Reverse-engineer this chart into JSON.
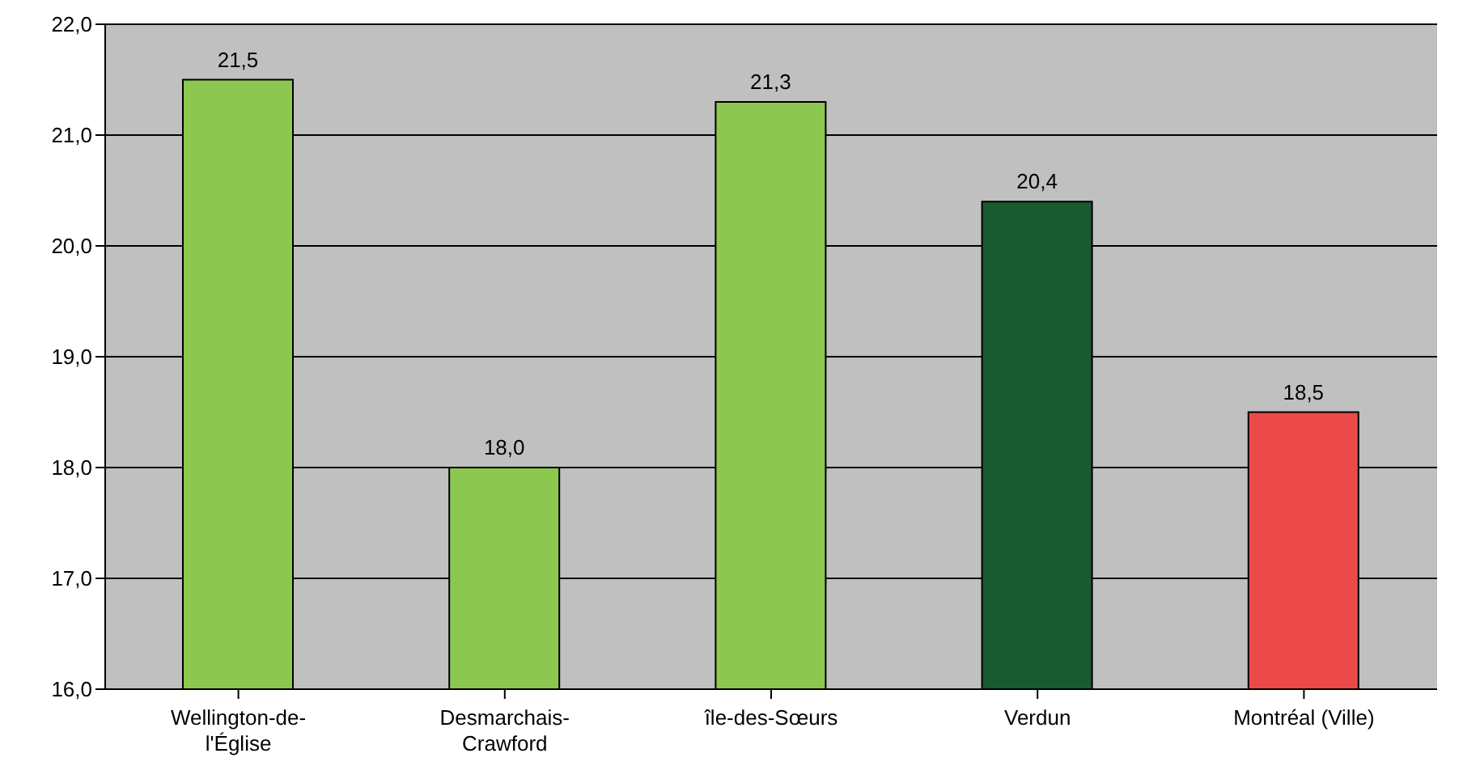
{
  "chart_data": {
    "type": "bar",
    "categories": [
      "Wellington-de-l'Église",
      "Desmarchais-Crawford",
      "île-des-Sœurs",
      "Verdun",
      "Montréal (Ville)"
    ],
    "values": [
      21.5,
      18.0,
      21.3,
      20.4,
      18.5
    ],
    "colors": [
      "#8cc850",
      "#8cc850",
      "#8cc850",
      "#1a5a30",
      "#ec4a4a"
    ],
    "value_labels": [
      "21,5",
      "18,0",
      "21,3",
      "20,4",
      "18,5"
    ],
    "ylim": [
      16,
      22
    ],
    "yticks": [
      {
        "value": 16,
        "label": "16,0"
      },
      {
        "value": 17,
        "label": "17,0"
      },
      {
        "value": 18,
        "label": "18,0"
      },
      {
        "value": 19,
        "label": "19,0"
      },
      {
        "value": 20,
        "label": "20,0"
      },
      {
        "value": 21,
        "label": "21,0"
      },
      {
        "value": 22,
        "label": "22,0"
      }
    ],
    "grid": "y"
  }
}
